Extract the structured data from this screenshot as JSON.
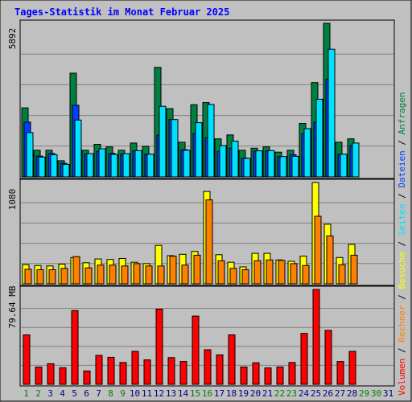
{
  "chart_data": {
    "type": "bar",
    "title": "Tages-Statistik im Monat Februar 2025",
    "colors": {
      "background": "#c0c0c0",
      "frame": "#000000",
      "title": "#0000ff",
      "hits": "#008040",
      "files": "#0040ff",
      "pages": "#00e0ff",
      "visits": "#ffff00",
      "sites": "#ff8000",
      "kbytes": "#ff0000",
      "weekday": "#000080",
      "weekend": "#008000"
    },
    "days": [
      "1",
      "2",
      "3",
      "4",
      "5",
      "6",
      "7",
      "8",
      "9",
      "10",
      "11",
      "12",
      "13",
      "14",
      "15",
      "16",
      "17",
      "18",
      "19",
      "20",
      "21",
      "22",
      "23",
      "24",
      "25",
      "26",
      "27",
      "28",
      "29",
      "30",
      "31"
    ],
    "weekend_days": [
      "1",
      "2",
      "8",
      "9",
      "15",
      "16",
      "22",
      "23",
      "29",
      "30"
    ],
    "top_panel": {
      "max_label": "5892",
      "max": 5892,
      "series": [
        {
          "name": "Anfragen",
          "values": [
            2650,
            1020,
            1020,
            620,
            3980,
            1020,
            1250,
            1150,
            1020,
            1300,
            1170,
            4200,
            2620,
            1330,
            2770,
            2850,
            1460,
            1610,
            1020,
            1100,
            1150,
            950,
            1020,
            2050,
            3620,
            5892,
            1330,
            1460,
            0,
            0,
            0
          ]
        },
        {
          "name": "Dateien",
          "values": [
            2100,
            800,
            900,
            520,
            2750,
            880,
            980,
            900,
            880,
            1000,
            870,
            1600,
            2200,
            1040,
            1670,
            1500,
            980,
            1100,
            720,
            990,
            1000,
            780,
            850,
            1650,
            2100,
            3750,
            870,
            1200,
            0,
            0,
            0
          ]
        },
        {
          "name": "Seiten",
          "values": [
            1700,
            760,
            850,
            480,
            2180,
            890,
            1080,
            860,
            890,
            1010,
            870,
            2710,
            2200,
            1020,
            2080,
            2780,
            1200,
            1370,
            710,
            1000,
            1010,
            780,
            790,
            1850,
            2980,
            4900,
            870,
            1300,
            0,
            0,
            0
          ]
        }
      ]
    },
    "middle_panel": {
      "max_label": "1080",
      "max": 1080,
      "series": [
        {
          "name": "Besuche",
          "values": [
            205,
            195,
            190,
            210,
            280,
            225,
            265,
            260,
            270,
            230,
            215,
            410,
            300,
            315,
            345,
            985,
            310,
            230,
            180,
            325,
            325,
            255,
            240,
            295,
            1080,
            635,
            280,
            420,
            0,
            0,
            0
          ]
        },
        {
          "name": "Rechner",
          "values": [
            155,
            150,
            150,
            165,
            290,
            170,
            200,
            200,
            190,
            215,
            190,
            190,
            295,
            200,
            305,
            895,
            245,
            165,
            150,
            245,
            255,
            250,
            215,
            195,
            720,
            510,
            205,
            305,
            0,
            0,
            0
          ]
        }
      ]
    },
    "bottom_panel": {
      "max_label": "79.64 MB",
      "max": 79.64,
      "series": [
        {
          "name": "Volumen",
          "values": [
            41.5,
            14.5,
            17.3,
            13.9,
            61.9,
            11.2,
            24.3,
            22.7,
            18.3,
            27.7,
            20.5,
            63.1,
            22.4,
            19.2,
            57.3,
            29.0,
            24.7,
            41.5,
            14.6,
            18.1,
            13.8,
            14.6,
            18.3,
            42.7,
            79.64,
            45.3,
            19.2,
            27.7,
            0,
            0,
            0
          ]
        }
      ]
    },
    "right_legend": [
      {
        "text": "Volumen",
        "color_key": "kbytes"
      },
      {
        "text": " / ",
        "color_key": "frame"
      },
      {
        "text": "Rechner",
        "color_key": "sites"
      },
      {
        "text": " / ",
        "color_key": "frame"
      },
      {
        "text": "Besuche",
        "color_key": "visits"
      },
      {
        "text": " / ",
        "color_key": "frame"
      },
      {
        "text": "Seiten",
        "color_key": "pages"
      },
      {
        "text": " / ",
        "color_key": "frame"
      },
      {
        "text": "Dateien",
        "color_key": "files"
      },
      {
        "text": " / ",
        "color_key": "frame"
      },
      {
        "text": "Anfragen",
        "color_key": "hits"
      }
    ]
  }
}
